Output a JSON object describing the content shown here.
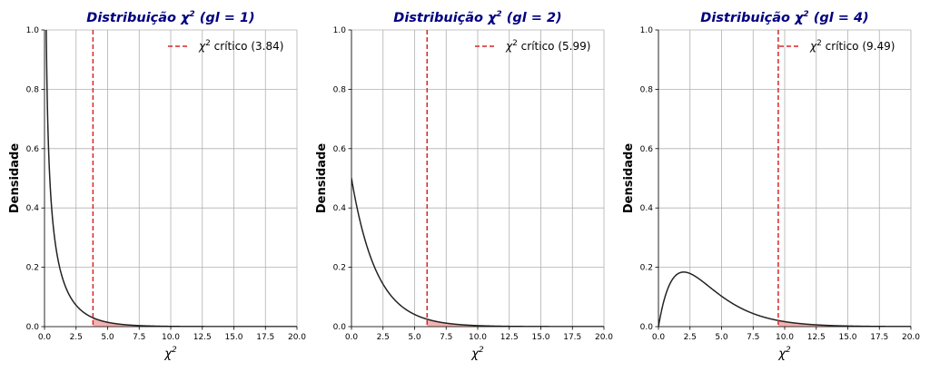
{
  "chart_data": [
    {
      "type": "line",
      "title_prefix": "Distribuição ",
      "title_symbol": "χ",
      "title_sup": "2",
      "title_suffix": " (gl = 1)",
      "df": 1,
      "critical_value": 3.84,
      "legend_symbol": "χ",
      "legend_sup": "2",
      "legend_text": " crítico (3.84)",
      "ylabel": "Densidade",
      "xlabel_symbol": "χ",
      "xlabel_sup": "2",
      "xlim": [
        0,
        20
      ],
      "ylim": [
        0,
        1.0
      ],
      "xticks": [
        "0.0",
        "2.5",
        "5.0",
        "7.5",
        "10.0",
        "12.5",
        "15.0",
        "17.5",
        "20.0"
      ],
      "yticks": [
        "0.0",
        "0.2",
        "0.4",
        "0.6",
        "0.8",
        "1.0"
      ],
      "grid": true,
      "legend_position": "top-right",
      "colors": {
        "curve": "#222222",
        "critical": "#d62728",
        "area": "#f4a3a3"
      }
    },
    {
      "type": "line",
      "title_prefix": "Distribuição ",
      "title_symbol": "χ",
      "title_sup": "2",
      "title_suffix": " (gl = 2)",
      "df": 2,
      "critical_value": 5.99,
      "legend_symbol": "χ",
      "legend_sup": "2",
      "legend_text": " crítico (5.99)",
      "ylabel": "Densidade",
      "xlabel_symbol": "χ",
      "xlabel_sup": "2",
      "xlim": [
        0,
        20
      ],
      "ylim": [
        0,
        1.0
      ],
      "xticks": [
        "0.0",
        "2.5",
        "5.0",
        "7.5",
        "10.0",
        "12.5",
        "15.0",
        "17.5",
        "20.0"
      ],
      "yticks": [
        "0.0",
        "0.2",
        "0.4",
        "0.6",
        "0.8",
        "1.0"
      ],
      "grid": true,
      "legend_position": "top-right",
      "colors": {
        "curve": "#222222",
        "critical": "#d62728",
        "area": "#f4a3a3"
      }
    },
    {
      "type": "line",
      "title_prefix": "Distribuição ",
      "title_symbol": "χ",
      "title_sup": "2",
      "title_suffix": " (gl = 4)",
      "df": 4,
      "critical_value": 9.49,
      "legend_symbol": "χ",
      "legend_sup": "2",
      "legend_text": " crítico (9.49)",
      "ylabel": "Densidade",
      "xlabel_symbol": "χ",
      "xlabel_sup": "2",
      "xlim": [
        0,
        20
      ],
      "ylim": [
        0,
        1.0
      ],
      "xticks": [
        "0.0",
        "2.5",
        "5.0",
        "7.5",
        "10.0",
        "12.5",
        "15.0",
        "17.5",
        "20.0"
      ],
      "yticks": [
        "0.0",
        "0.2",
        "0.4",
        "0.6",
        "0.8",
        "1.0"
      ],
      "grid": true,
      "legend_position": "top-right",
      "colors": {
        "curve": "#222222",
        "critical": "#d62728",
        "area": "#f4a3a3"
      }
    }
  ]
}
